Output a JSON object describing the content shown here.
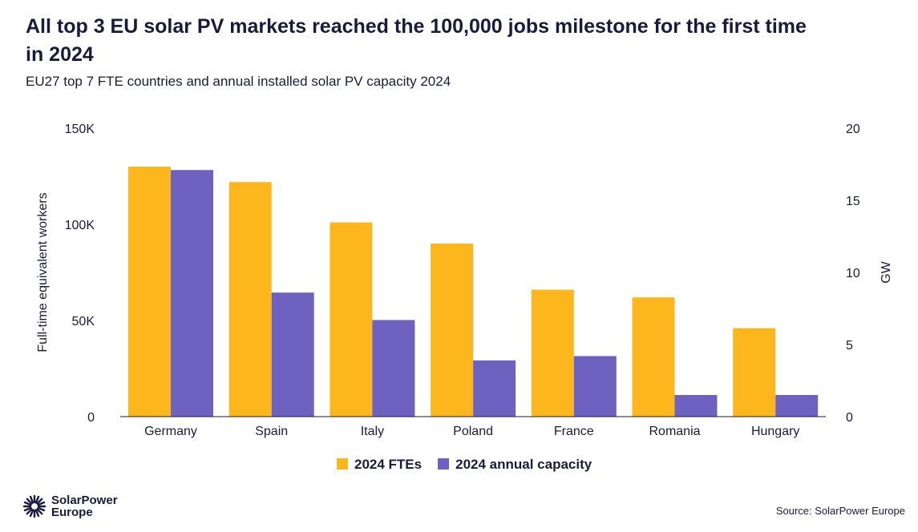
{
  "chart_data": {
    "type": "bar",
    "title": "All top 3 EU solar PV markets reached the 100,000 jobs milestone for the first time in 2024",
    "subtitle": "EU27 top 7 FTE countries and annual installed solar PV capacity 2024",
    "categories": [
      "Germany",
      "Spain",
      "Italy",
      "Poland",
      "France",
      "Romania",
      "Hungary"
    ],
    "series": [
      {
        "name": "2024 FTEs",
        "axis": "left",
        "color": "#fdb71c",
        "values": [
          130000,
          122000,
          101000,
          90000,
          66000,
          62000,
          46000
        ]
      },
      {
        "name": "2024 annual capacity",
        "axis": "right",
        "color": "#6f61c0",
        "values": [
          17.1,
          8.6,
          6.7,
          3.9,
          4.2,
          1.5,
          1.5
        ]
      }
    ],
    "ylabel": "Full-time equivalent workers",
    "ylim": [
      0,
      150000
    ],
    "yticks": [
      "0",
      "50K",
      "100K",
      "150K"
    ],
    "y2label": "GW",
    "y2lim": [
      0,
      20
    ],
    "y2ticks": [
      "0",
      "5",
      "10",
      "15",
      "20"
    ],
    "grid": false,
    "legend_position": "bottom"
  },
  "logo": {
    "line1": "SolarPower",
    "line2": "Europe"
  },
  "source": "Source: SolarPower Europe"
}
